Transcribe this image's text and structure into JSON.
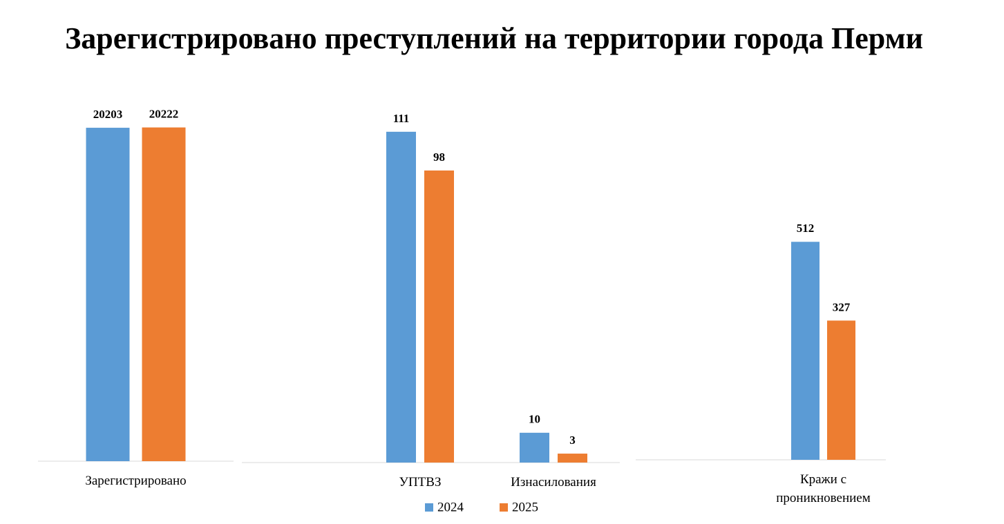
{
  "title": "Зарегистрировано преступлений на территории города Перми",
  "chart_data": [
    {
      "type": "bar",
      "categories": [
        "Зарегистрировано"
      ],
      "ylim": [
        0,
        21000
      ],
      "series": [
        {
          "color": "#5b9bd5",
          "values": [
            20203
          ]
        },
        {
          "color": "#ed7d31",
          "values": [
            20222
          ]
        }
      ]
    },
    {
      "type": "bar",
      "categories": [
        "УПТВЗ",
        "Изнасилования"
      ],
      "ylim": [
        0,
        120
      ],
      "legend": "bottom",
      "series": [
        {
          "name": "2024",
          "color": "#5b9bd5",
          "values": [
            111,
            10
          ]
        },
        {
          "name": "2025",
          "color": "#ed7d31",
          "values": [
            98,
            3
          ]
        }
      ]
    },
    {
      "type": "bar",
      "categories": [
        "Кражи с проникновением"
      ],
      "ylim": [
        0,
        600
      ],
      "series": [
        {
          "color": "#5b9bd5",
          "values": [
            512
          ]
        },
        {
          "color": "#ed7d31",
          "values": [
            327
          ]
        }
      ]
    }
  ]
}
